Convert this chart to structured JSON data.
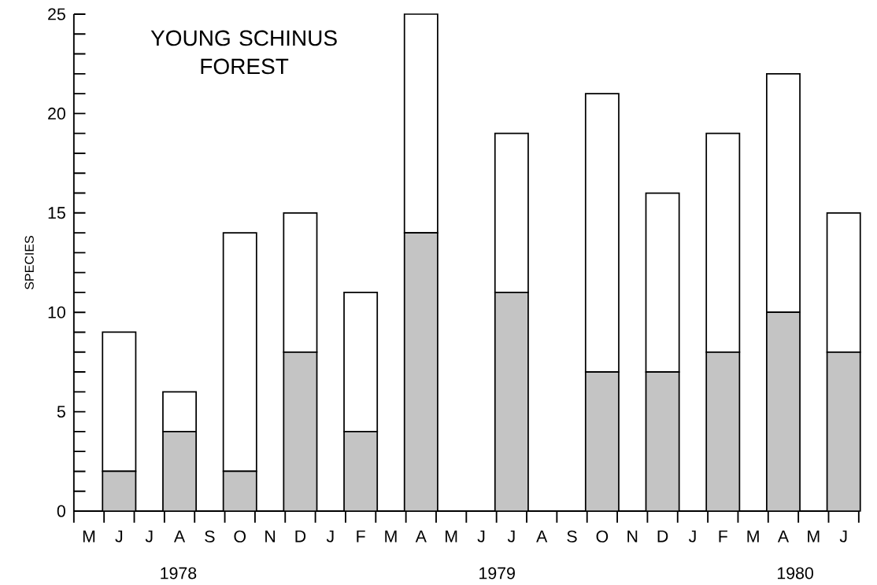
{
  "chart_data": {
    "type": "bar",
    "title": "YOUNG SCHINUS FOREST",
    "ylabel": "SPECIES",
    "stacked": true,
    "categories": [
      "M",
      "J",
      "J",
      "A",
      "S",
      "O",
      "N",
      "D",
      "J",
      "F",
      "M",
      "A",
      "M",
      "J",
      "J",
      "A",
      "S",
      "O",
      "N",
      "D",
      "J",
      "F",
      "M",
      "A",
      "M",
      "J"
    ],
    "series": [
      {
        "color": "#c4c4c4",
        "values": [
          null,
          2,
          null,
          4,
          null,
          2,
          null,
          8,
          null,
          4,
          null,
          14,
          null,
          null,
          11,
          null,
          null,
          7,
          null,
          7,
          null,
          8,
          null,
          10,
          null,
          8
        ]
      },
      {
        "color": "#ffffff",
        "values": [
          null,
          7,
          null,
          2,
          null,
          12,
          null,
          7,
          null,
          7,
          null,
          11,
          null,
          null,
          8,
          null,
          null,
          14,
          null,
          9,
          null,
          11,
          null,
          12,
          null,
          7
        ]
      }
    ],
    "ylim": [
      0,
      25
    ],
    "yticks": [
      0,
      5,
      10,
      15,
      20,
      25
    ],
    "annotations": [
      "1978",
      "1979",
      "1980"
    ]
  }
}
